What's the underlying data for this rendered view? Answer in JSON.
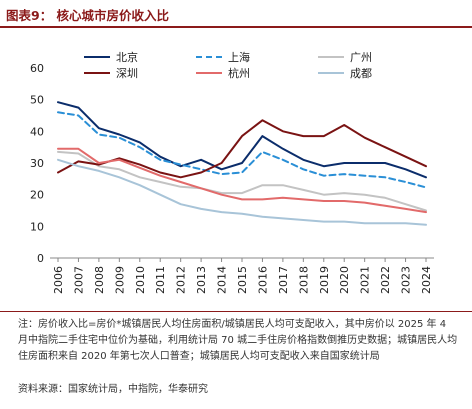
{
  "header": {
    "title": "图表9：  核心城市房价收入比"
  },
  "chart_data": {
    "type": "line",
    "x": [
      "2006",
      "2007",
      "2008",
      "2009",
      "2010",
      "2011",
      "2012",
      "2013",
      "2014",
      "2015",
      "2016",
      "2017",
      "2018",
      "2019",
      "2020",
      "2021",
      "2022",
      "2023",
      "2024"
    ],
    "ylim": [
      0,
      60
    ],
    "yticks": [
      0,
      10,
      20,
      30,
      40,
      50,
      60
    ],
    "legend": "top",
    "series": [
      {
        "name": "北京",
        "color": "#0b2d6b",
        "dash": "solid",
        "values": [
          49.2,
          47.5,
          41.0,
          39.0,
          36.5,
          32.0,
          29.0,
          31.0,
          28.0,
          30.0,
          38.5,
          34.5,
          31.0,
          29.0,
          30.0,
          30.0,
          30.0,
          28.0,
          25.5
        ]
      },
      {
        "name": "上海",
        "color": "#2a8fd6",
        "dash": "dashed",
        "values": [
          46.0,
          45.0,
          39.0,
          38.0,
          35.0,
          31.0,
          29.5,
          28.0,
          26.5,
          27.0,
          33.5,
          31.0,
          28.0,
          26.0,
          26.5,
          26.0,
          25.5,
          24.0,
          22.3
        ]
      },
      {
        "name": "广州",
        "color": "#c3c3c3",
        "dash": "solid",
        "values": [
          33.5,
          33.0,
          29.0,
          28.0,
          25.5,
          24.0,
          22.5,
          22.0,
          20.5,
          20.5,
          23.0,
          23.0,
          21.5,
          20.0,
          20.5,
          20.0,
          19.0,
          17.0,
          15.0
        ]
      },
      {
        "name": "深圳",
        "color": "#7a1313",
        "dash": "solid",
        "values": [
          27.0,
          30.5,
          29.5,
          31.5,
          29.5,
          27.0,
          25.5,
          27.0,
          30.0,
          38.5,
          43.5,
          40.0,
          38.5,
          38.5,
          42.0,
          38.0,
          35.0,
          32.0,
          29.0
        ]
      },
      {
        "name": "杭州",
        "color": "#e26a6a",
        "dash": "solid",
        "values": [
          34.5,
          34.5,
          30.0,
          31.0,
          28.5,
          26.0,
          24.0,
          22.0,
          20.0,
          18.5,
          18.5,
          19.0,
          18.5,
          18.0,
          18.0,
          17.5,
          16.5,
          15.5,
          14.5
        ]
      },
      {
        "name": "成都",
        "color": "#a8c4d8",
        "dash": "solid",
        "values": [
          31.0,
          29.0,
          27.5,
          25.5,
          23.0,
          20.0,
          17.0,
          15.5,
          14.5,
          14.0,
          13.0,
          12.5,
          12.0,
          11.5,
          11.5,
          11.0,
          11.0,
          11.0,
          10.5
        ]
      }
    ]
  },
  "footer": {
    "note": "注：房价收入比=房价*城镇居民人均住房面积/城镇居民人均可支配收入，其中房价以 2025 年 4 月中指院二手住宅中位价为基础，利用统计局 70 城二手住房价格指数倒推历史数据；城镇居民人均住房面积来自 2020 年第七次人口普查；城镇居民人均可支配收入来自国家统计局",
    "source": "资料来源：国家统计局，中指院，华泰研究"
  }
}
